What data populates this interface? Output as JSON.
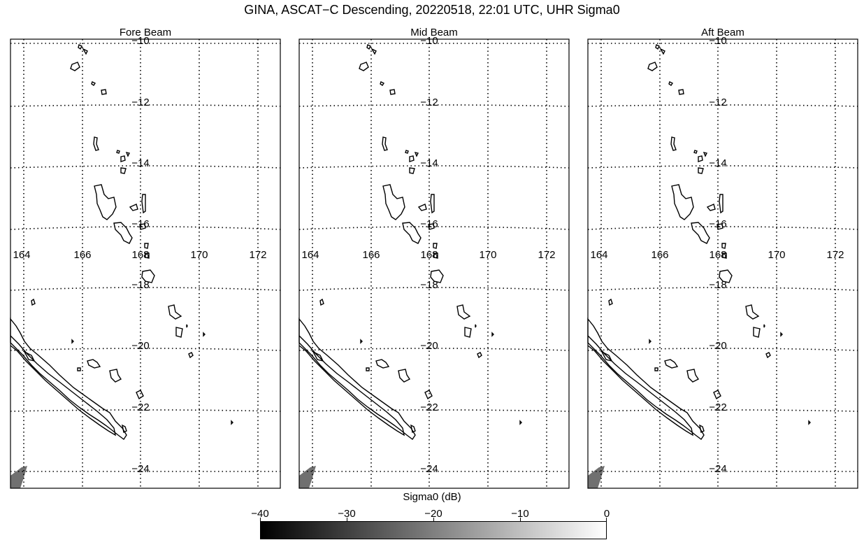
{
  "title": "GINA, ASCAT−C Descending, 20220518, 22:01 UTC, UHR Sigma0",
  "panels": [
    {
      "title": "Fore Beam"
    },
    {
      "title": "Mid Beam"
    },
    {
      "title": "Aft Beam"
    }
  ],
  "lon_labels": [
    "164",
    "166",
    "168",
    "170",
    "172"
  ],
  "lat_labels": [
    "−10",
    "−12",
    "−14",
    "−16",
    "−18",
    "−20",
    "−22",
    "−24"
  ],
  "colorbar": {
    "title": "Sigma0 (dB)",
    "ticks": [
      "−40",
      "−30",
      "−20",
      "−10",
      "0"
    ],
    "min_color": "#000000",
    "max_color": "#ffffff"
  },
  "colors": {
    "coastline": "#000000",
    "data_patch": "#707070",
    "grid": "#000000"
  }
}
